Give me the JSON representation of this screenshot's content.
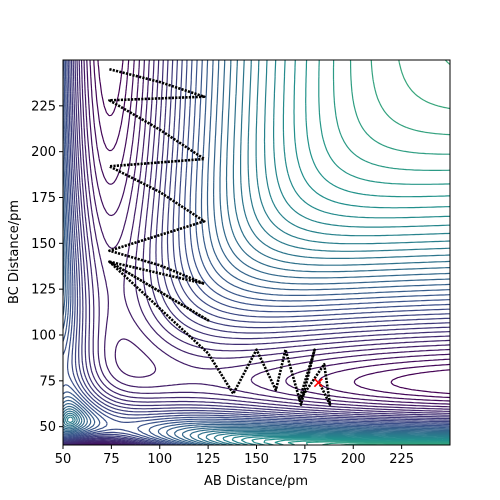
{
  "chart_data": {
    "type": "contour",
    "title": "",
    "xlabel": "AB Distance/pm",
    "ylabel": "BC Distance/pm",
    "xlim": [
      50,
      250
    ],
    "ylim": [
      40,
      250
    ],
    "xticks": [
      50,
      75,
      100,
      125,
      150,
      175,
      200,
      225
    ],
    "yticks": [
      50,
      75,
      100,
      125,
      150,
      175,
      200,
      225
    ],
    "grid": false,
    "legend": "none",
    "colormap": [
      "#440154",
      "#3b528b",
      "#21918c",
      "#5ec962",
      "#fde725"
    ],
    "surface": {
      "description_levels": 60,
      "minimum_x": 74,
      "minimum_y": 74
    },
    "series": [
      {
        "type": "trajectory",
        "color": "#000000",
        "x": [
          74,
          100,
          123,
          74,
          100,
          123,
          74,
          100,
          123,
          74,
          100,
          123,
          74,
          125,
          74,
          125,
          138,
          150,
          160,
          165,
          173,
          180,
          172,
          185,
          188,
          182
        ],
        "y": [
          245,
          238,
          230,
          228,
          212,
          196,
          192,
          178,
          162,
          146,
          138,
          128,
          140,
          108,
          140,
          90,
          68,
          92,
          70,
          92,
          62,
          92,
          64,
          84,
          62,
          75
        ]
      },
      {
        "type": "marker",
        "marker": "x",
        "color": "#ff0000",
        "x": [
          182
        ],
        "y": [
          74
        ]
      }
    ]
  }
}
